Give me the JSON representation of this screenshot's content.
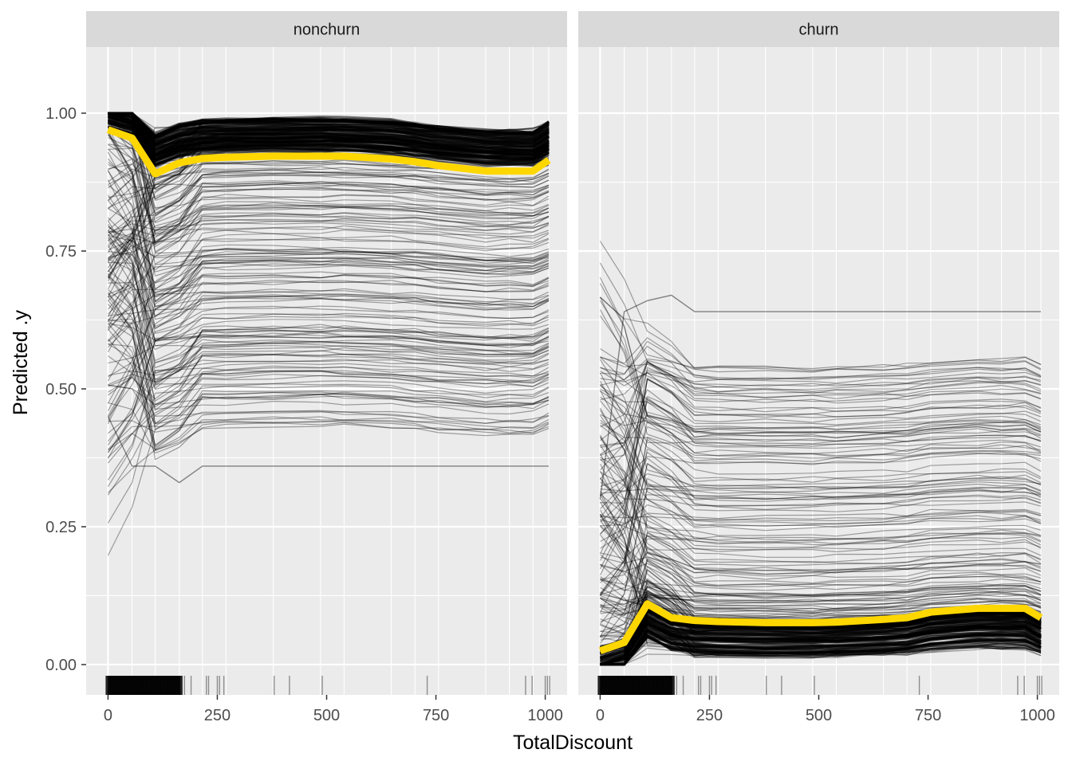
{
  "chart_data": {
    "type": "line",
    "xlabel": "TotalDiscount",
    "ylabel": "Predicted .y",
    "x_ticks": [
      0,
      250,
      500,
      750,
      1000
    ],
    "y_ticks": [
      0.0,
      0.25,
      0.5,
      0.75,
      1.0
    ],
    "x_tick_labels": [
      "0",
      "250",
      "500",
      "750",
      "1000"
    ],
    "y_tick_labels": [
      "0.00",
      "0.25",
      "0.50",
      "0.75",
      "1.00"
    ],
    "xlim": [
      -50,
      1050
    ],
    "ylim": [
      -0.055,
      1.12
    ],
    "grid": true,
    "x_grid": [
      0,
      55,
      108,
      163,
      216,
      270,
      378,
      486,
      540,
      648,
      702,
      756,
      864,
      918,
      972,
      1008
    ],
    "colors": {
      "panel_bg": "#ebebeb",
      "strip_bg": "#d9d9d9",
      "grid": "#ffffff",
      "ice_line": "#000000",
      "pd_line": "#ffd700",
      "rug": "#000000"
    },
    "panels": [
      {
        "strip": "nonchurn",
        "pd_line": {
          "x": [
            0,
            55,
            108,
            163,
            216,
            270,
            378,
            486,
            540,
            648,
            702,
            756,
            864,
            918,
            972,
            1008
          ],
          "y": [
            0.97,
            0.955,
            0.89,
            0.91,
            0.918,
            0.92,
            0.922,
            0.922,
            0.922,
            0.917,
            0.912,
            0.905,
            0.895,
            0.895,
            0.895,
            0.915
          ]
        },
        "ice_range": {
          "top": 0.985,
          "bottom": 0.43,
          "lowest_curve": 0.36
        },
        "rug_x": [
          0,
          5,
          10,
          15,
          20,
          25,
          30,
          35,
          40,
          45,
          50,
          55,
          60,
          65,
          70,
          75,
          80,
          85,
          90,
          95,
          100,
          105,
          110,
          115,
          120,
          125,
          130,
          135,
          140,
          145,
          150,
          155,
          160,
          165,
          175,
          190,
          225,
          230,
          250,
          255,
          265,
          380,
          415,
          490,
          730,
          955,
          970,
          1000,
          1005,
          1010
        ]
      },
      {
        "strip": "churn",
        "pd_line": {
          "x": [
            0,
            55,
            108,
            163,
            216,
            270,
            378,
            486,
            540,
            648,
            702,
            756,
            864,
            918,
            972,
            1008
          ],
          "y": [
            0.025,
            0.04,
            0.11,
            0.085,
            0.08,
            0.078,
            0.076,
            0.076,
            0.077,
            0.082,
            0.085,
            0.095,
            0.102,
            0.102,
            0.102,
            0.085
          ]
        },
        "ice_range": {
          "top": 0.55,
          "bottom": 0.015,
          "highest_curve": 0.64
        },
        "rug_x": [
          0,
          5,
          10,
          15,
          20,
          25,
          30,
          35,
          40,
          45,
          50,
          55,
          60,
          65,
          70,
          75,
          80,
          85,
          90,
          95,
          100,
          105,
          110,
          115,
          120,
          125,
          130,
          135,
          140,
          145,
          150,
          155,
          160,
          165,
          175,
          190,
          225,
          230,
          250,
          255,
          265,
          380,
          415,
          490,
          730,
          955,
          970,
          1000,
          1005,
          1010
        ]
      }
    ]
  }
}
